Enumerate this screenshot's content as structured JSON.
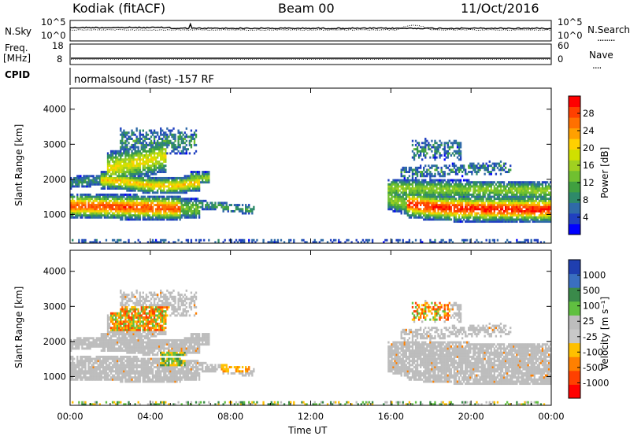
{
  "header": {
    "station": "Kodiak (fitACF)",
    "beam": "Beam 00",
    "date": "11/Oct/2016"
  },
  "panels": {
    "nsky": {
      "left_label": "N.Sky",
      "left_ticks": [
        "10^5",
        "10^0"
      ],
      "right_ticks": [
        "10^5",
        "10^0"
      ],
      "right_label": "N.Search",
      "right_legend": "........"
    },
    "freq": {
      "left_label_top": "Freq.",
      "left_label_unit": "[MHz]",
      "left_ticks": [
        "18",
        "8"
      ],
      "right_ticks": [
        "60",
        "0"
      ],
      "right_label": "Nave",
      "right_legend": "...."
    },
    "cpid": {
      "label": "CPID",
      "text": "normalsound (fast) -157 RF"
    }
  },
  "chart_data": [
    {
      "type": "heatmap",
      "name": "power",
      "ylabel": "Slant Range [km]",
      "xlabel": "",
      "ylim": [
        180,
        4600
      ],
      "xlim": [
        0,
        24
      ],
      "y_ticks": [
        "1000",
        "2000",
        "3000",
        "4000"
      ],
      "colorbar": {
        "label": "Power [dB]",
        "ticks": [
          "4",
          "8",
          "12",
          "16",
          "20",
          "24",
          "28"
        ],
        "colors": [
          "#0000ff",
          "#2040c0",
          "#2f6aa8",
          "#2e8a6a",
          "#40a040",
          "#70c030",
          "#a0d020",
          "#d0e000",
          "#ffd000",
          "#ffa000",
          "#ff7000",
          "#ff4000",
          "#ff0000"
        ]
      }
    },
    {
      "type": "heatmap",
      "name": "velocity",
      "ylabel": "Slant Range [km]",
      "xlabel": "Time UT",
      "ylim": [
        180,
        4600
      ],
      "xlim": [
        0,
        24
      ],
      "x_ticks": [
        "00:00",
        "04:00",
        "08:00",
        "12:00",
        "16:00",
        "20:00",
        "00:00"
      ],
      "y_ticks": [
        "1000",
        "2000",
        "3000",
        "4000"
      ],
      "colorbar": {
        "label": "Velocity [m s⁻¹]",
        "ticks": [
          "1000",
          "500",
          "100",
          "25",
          "-25",
          "-100",
          "-500",
          "-1000"
        ],
        "colors": [
          "#1f3fb0",
          "#3a6fc0",
          "#3a8a4a",
          "#60c040",
          "#bdbdbd",
          "#c8c8c8",
          "#ffc000",
          "#ff8000",
          "#ff4000",
          "#ff0000"
        ]
      }
    }
  ]
}
